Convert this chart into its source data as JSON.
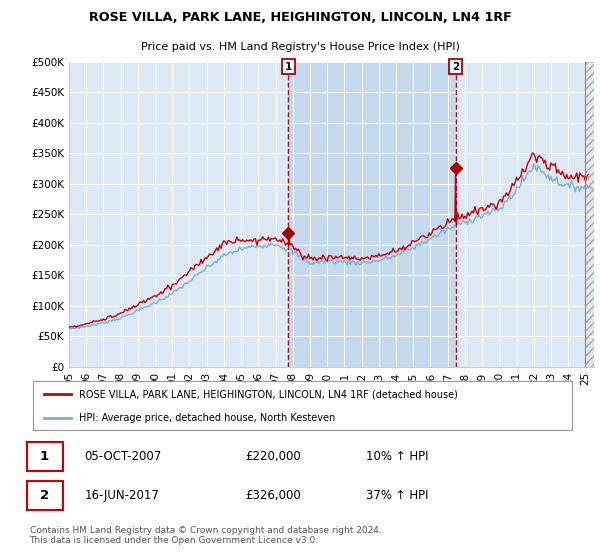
{
  "title": "ROSE VILLA, PARK LANE, HEIGHINGTON, LINCOLN, LN4 1RF",
  "subtitle": "Price paid vs. HM Land Registry's House Price Index (HPI)",
  "background_color": "#ffffff",
  "plot_bg_color": "#dce9f5",
  "shade_between_color": "#c5d9ee",
  "ylim": [
    0,
    500000
  ],
  "yticks": [
    0,
    50000,
    100000,
    150000,
    200000,
    250000,
    300000,
    350000,
    400000,
    450000,
    500000
  ],
  "ytick_labels": [
    "£0",
    "£50K",
    "£100K",
    "£150K",
    "£200K",
    "£250K",
    "£300K",
    "£350K",
    "£400K",
    "£450K",
    "£500K"
  ],
  "xlim_start": 1995.0,
  "xlim_end": 2025.5,
  "xtick_years": [
    1995,
    1996,
    1997,
    1998,
    1999,
    2000,
    2001,
    2002,
    2003,
    2004,
    2005,
    2006,
    2007,
    2008,
    2009,
    2010,
    2011,
    2012,
    2013,
    2014,
    2015,
    2016,
    2017,
    2018,
    2019,
    2020,
    2021,
    2022,
    2023,
    2024,
    2025
  ],
  "sale1_x": 2007.75,
  "sale1_y": 220000,
  "sale2_x": 2017.46,
  "sale2_y": 326000,
  "marker_color": "#aa0000",
  "line_color_red": "#cc0000",
  "line_color_blue": "#7aafd4",
  "legend_label_red": "ROSE VILLA, PARK LANE, HEIGHINGTON, LINCOLN, LN4 1RF (detached house)",
  "legend_label_blue": "HPI: Average price, detached house, North Kesteven",
  "info1_date": "05-OCT-2007",
  "info1_price": "£220,000",
  "info1_change": "10% ↑ HPI",
  "info2_date": "16-JUN-2017",
  "info2_price": "£326,000",
  "info2_change": "37% ↑ HPI",
  "footer": "Contains HM Land Registry data © Crown copyright and database right 2024.\nThis data is licensed under the Open Government Licence v3.0."
}
